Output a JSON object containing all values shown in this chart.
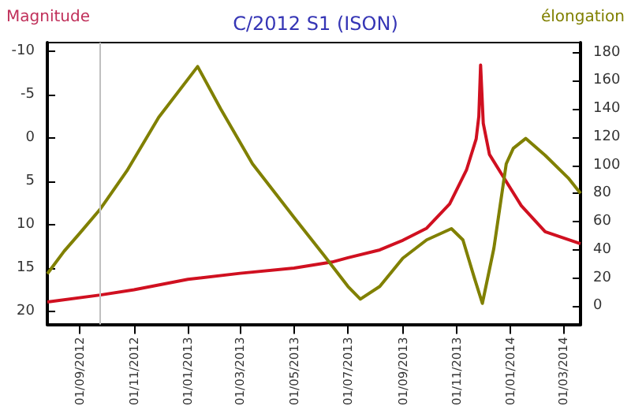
{
  "chart_data": {
    "type": "line",
    "title": "C/2012 S1 (ISON)",
    "ylabel": "Magnitude",
    "y2label": "élongation",
    "marker": "none",
    "grid": false,
    "xlim": [
      "2012-07-26",
      "2014-03-21"
    ],
    "xticks": [
      {
        "value": "2012-09-01",
        "label": "01/09/2012"
      },
      {
        "value": "2012-11-01",
        "label": "01/11/2012"
      },
      {
        "value": "2013-01-01",
        "label": "01/01/2013"
      },
      {
        "value": "2013-03-01",
        "label": "01/03/2013"
      },
      {
        "value": "2013-05-01",
        "label": "01/05/2013"
      },
      {
        "value": "2013-07-01",
        "label": "01/07/2013"
      },
      {
        "value": "2013-09-01",
        "label": "01/09/2013"
      },
      {
        "value": "2013-11-01",
        "label": "01/11/2013"
      },
      {
        "value": "2014-01-01",
        "label": "01/01/2014"
      },
      {
        "value": "2014-03-01",
        "label": "01/03/2014"
      }
    ],
    "ylim": [
      21.5,
      -11
    ],
    "yticks": [
      20,
      15,
      10,
      5,
      0,
      -5,
      -10
    ],
    "y2lim": [
      -13,
      187
    ],
    "y2ticks": [
      0,
      20,
      40,
      60,
      80,
      100,
      120,
      140,
      160,
      180
    ],
    "ref_lines": [
      {
        "axis": "x",
        "value": "2012-09-24",
        "color": "#c0c0c0"
      }
    ],
    "series": [
      {
        "color": "#d01020",
        "x": [
          "2012-07-26",
          "2012-09-24",
          "2012-11-01",
          "2013-01-01",
          "2013-03-01",
          "2013-05-01",
          "2013-06-13",
          "2013-07-01",
          "2013-08-06",
          "2013-09-01",
          "2013-09-28",
          "2013-10-24",
          "2013-11-12",
          "2013-11-23",
          "2013-11-26",
          "2013-11-28",
          "2013-12-01",
          "2013-12-08",
          "2013-12-22",
          "2014-01-13",
          "2014-02-09",
          "2014-03-21"
        ],
        "values": [
          18.9,
          18.1,
          17.5,
          16.3,
          15.6,
          15.0,
          14.3,
          13.8,
          12.9,
          11.8,
          10.4,
          7.6,
          3.7,
          0.1,
          -2.5,
          -8.4,
          -1.7,
          1.9,
          4.2,
          7.8,
          10.8,
          12.2
        ]
      },
      {
        "color": "#808000",
        "axis": "y2",
        "x": [
          "2012-07-26",
          "2012-08-14",
          "2012-09-01",
          "2012-09-24",
          "2012-10-24",
          "2012-11-29",
          "2013-01-12",
          "2013-02-07",
          "2013-03-15",
          "2013-05-01",
          "2013-06-04",
          "2013-07-01",
          "2013-07-15",
          "2013-08-06",
          "2013-09-01",
          "2013-09-28",
          "2013-10-26",
          "2013-11-08",
          "2013-11-21",
          "2013-11-30",
          "2013-12-13",
          "2013-12-27",
          "2014-01-04",
          "2014-01-18",
          "2014-02-09",
          "2014-03-07",
          "2014-03-21"
        ],
        "values": [
          23,
          39,
          52,
          69,
          96,
          134,
          170,
          140,
          101,
          63,
          36,
          14,
          5,
          14,
          34,
          47,
          55,
          47,
          20,
          2,
          41,
          101,
          112,
          119,
          107,
          91,
          80
        ]
      }
    ]
  }
}
